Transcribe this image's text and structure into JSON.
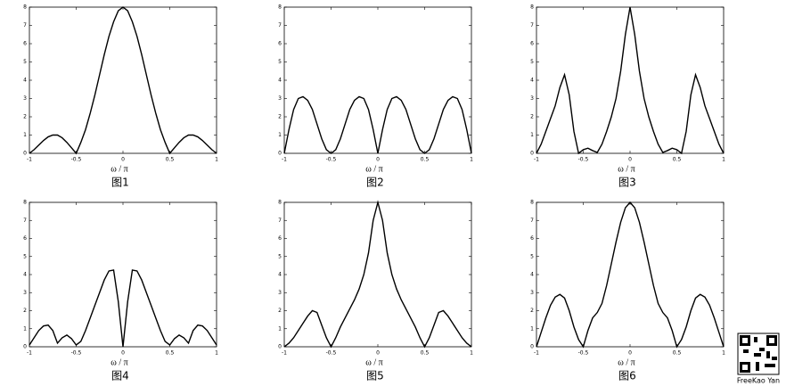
{
  "chart_data": [
    {
      "type": "line",
      "xlabel": "ω / π",
      "caption": "图1",
      "xlim": [
        -1,
        1
      ],
      "ylim": [
        0,
        8
      ],
      "xticks": [
        -1,
        -0.5,
        0,
        0.5,
        1
      ],
      "yticks": [
        0,
        1,
        2,
        3,
        4,
        5,
        6,
        7,
        8
      ],
      "color": "#000000",
      "x": [
        -1,
        -0.95,
        -0.9,
        -0.85,
        -0.8,
        -0.75,
        -0.7,
        -0.65,
        -0.6,
        -0.55,
        -0.5,
        -0.45,
        -0.4,
        -0.35,
        -0.3,
        -0.25,
        -0.2,
        -0.15,
        -0.1,
        -0.05,
        0,
        0.05,
        0.1,
        0.15,
        0.2,
        0.25,
        0.3,
        0.35,
        0.4,
        0.45,
        0.5,
        0.55,
        0.6,
        0.65,
        0.7,
        0.75,
        0.8,
        0.85,
        0.9,
        0.95,
        1
      ],
      "values": [
        0,
        0.2,
        0.45,
        0.7,
        0.9,
        1.0,
        1.0,
        0.85,
        0.6,
        0.3,
        0,
        0.6,
        1.3,
        2.2,
        3.2,
        4.3,
        5.4,
        6.4,
        7.2,
        7.8,
        8,
        7.8,
        7.2,
        6.4,
        5.4,
        4.3,
        3.2,
        2.2,
        1.3,
        0.6,
        0,
        0.3,
        0.6,
        0.85,
        1.0,
        1.0,
        0.9,
        0.7,
        0.45,
        0.2,
        0
      ]
    },
    {
      "type": "line",
      "xlabel": "ω / π",
      "caption": "图2",
      "xlim": [
        -1,
        1
      ],
      "ylim": [
        0,
        8
      ],
      "xticks": [
        -1,
        -0.5,
        0,
        0.5,
        1
      ],
      "yticks": [
        0,
        1,
        2,
        3,
        4,
        5,
        6,
        7,
        8
      ],
      "color": "#000000",
      "x": [
        -1,
        -0.95,
        -0.9,
        -0.85,
        -0.8,
        -0.75,
        -0.7,
        -0.65,
        -0.6,
        -0.55,
        -0.5,
        -0.45,
        -0.4,
        -0.35,
        -0.3,
        -0.25,
        -0.2,
        -0.15,
        -0.1,
        -0.05,
        0,
        0.05,
        0.1,
        0.15,
        0.2,
        0.25,
        0.3,
        0.35,
        0.4,
        0.45,
        0.5,
        0.55,
        0.6,
        0.65,
        0.7,
        0.75,
        0.8,
        0.85,
        0.9,
        0.95,
        1
      ],
      "values": [
        0,
        1.3,
        2.4,
        3.0,
        3.1,
        2.9,
        2.4,
        1.6,
        0.8,
        0.2,
        0,
        0.2,
        0.8,
        1.6,
        2.4,
        2.9,
        3.1,
        3.0,
        2.4,
        1.3,
        0,
        1.3,
        2.4,
        3.0,
        3.1,
        2.9,
        2.4,
        1.6,
        0.8,
        0.2,
        0,
        0.2,
        0.8,
        1.6,
        2.4,
        2.9,
        3.1,
        3.0,
        2.4,
        1.3,
        0
      ]
    },
    {
      "type": "line",
      "xlabel": "ω / π",
      "caption": "图3",
      "xlim": [
        -1,
        1
      ],
      "ylim": [
        0,
        8
      ],
      "xticks": [
        -1,
        -0.5,
        0,
        0.5,
        1
      ],
      "yticks": [
        0,
        1,
        2,
        3,
        4,
        5,
        6,
        7,
        8
      ],
      "color": "#000000",
      "x": [
        -1,
        -0.95,
        -0.9,
        -0.85,
        -0.8,
        -0.75,
        -0.7,
        -0.65,
        -0.6,
        -0.55,
        -0.5,
        -0.45,
        -0.4,
        -0.35,
        -0.3,
        -0.25,
        -0.2,
        -0.15,
        -0.1,
        -0.05,
        0,
        0.05,
        0.1,
        0.15,
        0.2,
        0.25,
        0.3,
        0.35,
        0.4,
        0.45,
        0.5,
        0.55,
        0.6,
        0.65,
        0.7,
        0.75,
        0.8,
        0.85,
        0.9,
        0.95,
        1
      ],
      "values": [
        0,
        0.5,
        1.2,
        1.9,
        2.6,
        3.6,
        4.3,
        3.2,
        1.2,
        0,
        0.2,
        0.28,
        0.15,
        0.05,
        0.5,
        1.2,
        2.0,
        3.0,
        4.5,
        6.5,
        8,
        6.5,
        4.5,
        3.0,
        2.0,
        1.2,
        0.5,
        0.05,
        0.15,
        0.28,
        0.2,
        0,
        1.2,
        3.2,
        4.3,
        3.6,
        2.6,
        1.9,
        1.2,
        0.5,
        0
      ]
    },
    {
      "type": "line",
      "xlabel": "ω / π",
      "caption": "图4",
      "xlim": [
        -1,
        1
      ],
      "ylim": [
        0,
        8
      ],
      "xticks": [
        -1,
        -0.5,
        0,
        0.5,
        1
      ],
      "yticks": [
        0,
        1,
        2,
        3,
        4,
        5,
        6,
        7,
        8
      ],
      "color": "#000000",
      "x": [
        -1,
        -0.95,
        -0.9,
        -0.85,
        -0.8,
        -0.75,
        -0.7,
        -0.65,
        -0.6,
        -0.55,
        -0.5,
        -0.45,
        -0.4,
        -0.35,
        -0.3,
        -0.25,
        -0.2,
        -0.15,
        -0.1,
        -0.05,
        0,
        0.05,
        0.1,
        0.15,
        0.2,
        0.25,
        0.3,
        0.35,
        0.4,
        0.45,
        0.5,
        0.55,
        0.6,
        0.65,
        0.7,
        0.75,
        0.8,
        0.85,
        0.9,
        0.95,
        1
      ],
      "values": [
        0.1,
        0.5,
        0.9,
        1.15,
        1.2,
        0.9,
        0.2,
        0.5,
        0.65,
        0.45,
        0.1,
        0.3,
        0.9,
        1.6,
        2.3,
        3.0,
        3.7,
        4.2,
        4.25,
        2.5,
        0,
        2.5,
        4.25,
        4.2,
        3.7,
        3.0,
        2.3,
        1.6,
        0.9,
        0.3,
        0.1,
        0.45,
        0.65,
        0.5,
        0.2,
        0.9,
        1.2,
        1.15,
        0.9,
        0.5,
        0.1
      ]
    },
    {
      "type": "line",
      "xlabel": "ω / π",
      "caption": "图5",
      "xlim": [
        -1,
        1
      ],
      "ylim": [
        0,
        8
      ],
      "xticks": [
        -1,
        -0.5,
        0,
        0.5,
        1
      ],
      "yticks": [
        0,
        1,
        2,
        3,
        4,
        5,
        6,
        7,
        8
      ],
      "color": "#000000",
      "x": [
        -1,
        -0.95,
        -0.9,
        -0.85,
        -0.8,
        -0.75,
        -0.7,
        -0.65,
        -0.6,
        -0.55,
        -0.5,
        -0.45,
        -0.4,
        -0.35,
        -0.3,
        -0.25,
        -0.2,
        -0.15,
        -0.1,
        -0.05,
        0,
        0.05,
        0.1,
        0.15,
        0.2,
        0.25,
        0.3,
        0.35,
        0.4,
        0.45,
        0.5,
        0.55,
        0.6,
        0.65,
        0.7,
        0.75,
        0.8,
        0.85,
        0.9,
        0.95,
        1
      ],
      "values": [
        0,
        0.2,
        0.5,
        0.9,
        1.3,
        1.7,
        2.0,
        1.9,
        1.2,
        0.5,
        0,
        0.5,
        1.1,
        1.6,
        2.1,
        2.6,
        3.2,
        4.0,
        5.2,
        7.0,
        8,
        7.0,
        5.2,
        4.0,
        3.2,
        2.6,
        2.1,
        1.6,
        1.1,
        0.5,
        0,
        0.5,
        1.2,
        1.9,
        2.0,
        1.7,
        1.3,
        0.9,
        0.5,
        0.2,
        0
      ]
    },
    {
      "type": "line",
      "xlabel": "ω / π",
      "caption": "图6",
      "xlim": [
        -1,
        1
      ],
      "ylim": [
        0,
        8
      ],
      "xticks": [
        -1,
        -0.5,
        0,
        0.5,
        1
      ],
      "yticks": [
        0,
        1,
        2,
        3,
        4,
        5,
        6,
        7,
        8
      ],
      "color": "#000000",
      "x": [
        -1,
        -0.95,
        -0.9,
        -0.85,
        -0.8,
        -0.75,
        -0.7,
        -0.65,
        -0.6,
        -0.55,
        -0.5,
        -0.45,
        -0.4,
        -0.35,
        -0.3,
        -0.25,
        -0.2,
        -0.15,
        -0.1,
        -0.05,
        0,
        0.05,
        0.1,
        0.15,
        0.2,
        0.25,
        0.3,
        0.35,
        0.4,
        0.45,
        0.5,
        0.55,
        0.6,
        0.65,
        0.7,
        0.75,
        0.8,
        0.85,
        0.9,
        0.95,
        1
      ],
      "values": [
        0,
        0.8,
        1.6,
        2.3,
        2.75,
        2.9,
        2.7,
        2.0,
        1.1,
        0.4,
        0,
        0.9,
        1.6,
        1.9,
        2.4,
        3.4,
        4.6,
        5.8,
        6.9,
        7.7,
        8,
        7.7,
        6.9,
        5.8,
        4.6,
        3.4,
        2.4,
        1.9,
        1.6,
        0.9,
        0,
        0.4,
        1.1,
        2.0,
        2.7,
        2.9,
        2.75,
        2.3,
        1.6,
        0.8,
        0
      ]
    }
  ],
  "watermark": "FreeKao Yan"
}
